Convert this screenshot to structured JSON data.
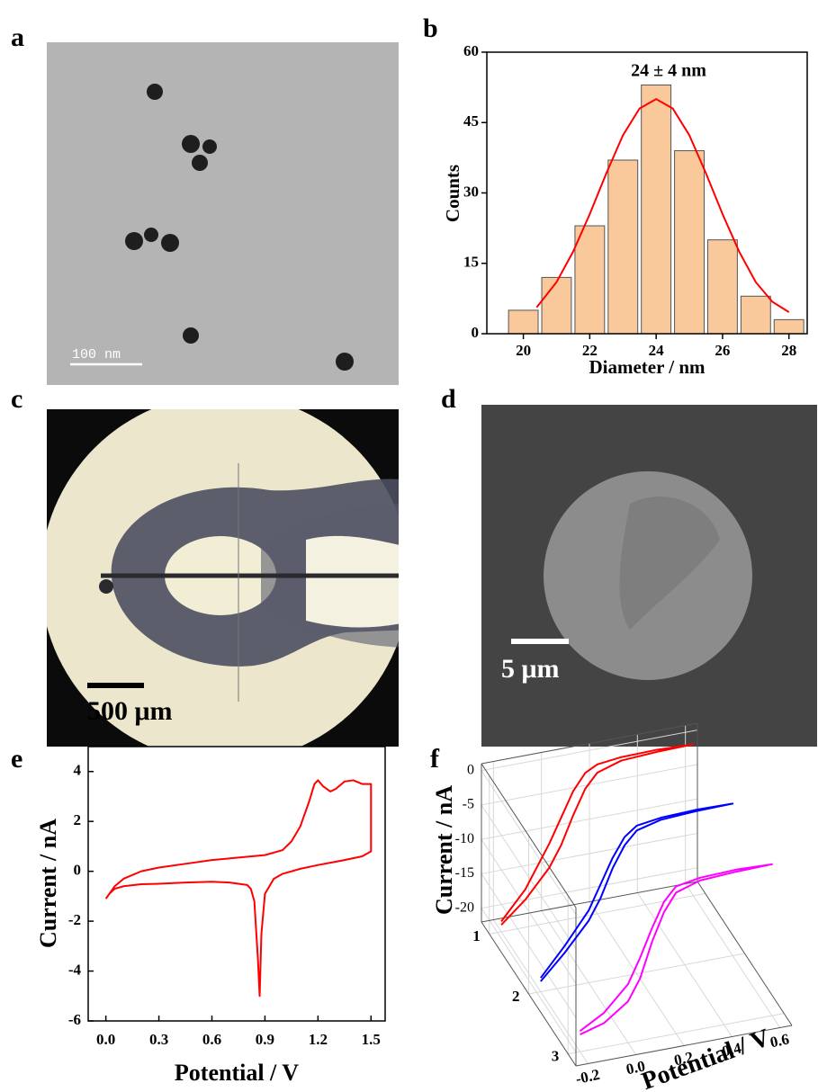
{
  "panels": [
    {
      "label": "a",
      "scale_bar": "100 nm"
    },
    {
      "label": "b"
    },
    {
      "label": "c",
      "scale_bar": "500 μm"
    },
    {
      "label": "d",
      "scale_bar": "5 μm"
    },
    {
      "label": "e"
    },
    {
      "label": "f"
    }
  ],
  "chart_data": [
    {
      "type": "histogram",
      "xlabel": "Diameter / nm",
      "ylabel": "Counts",
      "annotation": "24 ± 4 nm",
      "bins": [
        19.5,
        20.5,
        21.5,
        22.5,
        23.5,
        24.5,
        25.5,
        26.5,
        27.5,
        28.5
      ],
      "counts": [
        5,
        12,
        23,
        37,
        53,
        39,
        20,
        8,
        3
      ],
      "color": "#f9c89b",
      "fit": {
        "color": "#ff0000",
        "x": [
          20.4,
          21,
          21.5,
          22,
          22.5,
          23,
          23.5,
          24,
          24.5,
          25,
          25.5,
          26,
          26.5,
          27,
          27.5,
          28
        ],
        "values": [
          5.6,
          11,
          17.5,
          25.5,
          34.2,
          42.3,
          48,
          50,
          48,
          42.3,
          34.2,
          25.5,
          17.5,
          11,
          6.8,
          4.6
        ]
      },
      "xlim": [
        18.9,
        28.55
      ],
      "ylim": [
        0,
        60
      ],
      "xticks": [
        20,
        22,
        24,
        26,
        28
      ],
      "yticks": [
        0,
        15,
        30,
        45,
        60
      ]
    },
    {
      "type": "line",
      "xlabel": "Potential / V",
      "ylabel": "Current / nA",
      "series": [
        {
          "color": "#ff0000",
          "x": [
            0,
            0.05,
            0.1,
            0.2,
            0.3,
            0.45,
            0.6,
            0.75,
            0.9,
            1.0,
            1.05,
            1.1,
            1.15,
            1.18,
            1.2,
            1.23,
            1.27,
            1.3,
            1.35,
            1.4,
            1.45,
            1.5,
            1.5,
            1.45,
            1.35,
            1.2,
            1.1,
            1.0,
            0.95,
            0.9,
            0.88,
            0.87,
            0.86,
            0.84,
            0.82,
            0.8,
            0.7,
            0.6,
            0.45,
            0.3,
            0.2,
            0.1,
            0.05,
            0.02,
            0
          ],
          "values": [
            -1.1,
            -0.6,
            -0.3,
            0,
            0.15,
            0.3,
            0.45,
            0.55,
            0.65,
            0.85,
            1.2,
            1.8,
            2.8,
            3.5,
            3.65,
            3.4,
            3.2,
            3.3,
            3.6,
            3.65,
            3.5,
            3.5,
            0.8,
            0.6,
            0.45,
            0.25,
            0.1,
            -0.1,
            -0.3,
            -0.9,
            -2.5,
            -5.0,
            -3.5,
            -1.2,
            -0.7,
            -0.55,
            -0.45,
            -0.42,
            -0.45,
            -0.5,
            -0.52,
            -0.6,
            -0.7,
            -0.9,
            -1.1
          ]
        }
      ],
      "xlim": [
        -0.1,
        1.58
      ],
      "ylim": [
        -6,
        5
      ],
      "xticks": [
        {
          "value": 0,
          "label": "0.0"
        },
        0.3,
        0.6,
        0.9,
        1.2,
        1.5
      ],
      "yticks": [
        -6,
        -4,
        -2,
        0,
        2,
        4
      ]
    },
    {
      "type": "line3d",
      "xlabel": "Potential / V",
      "ylabel": "Current / nA",
      "series": [
        {
          "color": "#ff0000",
          "z": 1,
          "x": [
            -0.2,
            -0.1,
            0,
            0.05,
            0.1,
            0.15,
            0.2,
            0.3,
            0.45,
            0.6,
            0.45,
            0.3,
            0.2,
            0.15,
            0.1,
            0.05,
            0,
            -0.1,
            -0.2
          ],
          "values": [
            -21,
            -18,
            -14,
            -11,
            -7,
            -3.5,
            -1.5,
            -0.4,
            -0.1,
            0,
            0.2,
            0.1,
            -0.3,
            -1.2,
            -3.5,
            -7,
            -10.5,
            -16.5,
            -20.5
          ]
        },
        {
          "color": "#0000ff",
          "z": 2,
          "x": [
            -0.2,
            -0.1,
            0,
            0.05,
            0.1,
            0.15,
            0.2,
            0.3,
            0.45,
            0.6,
            0.45,
            0.3,
            0.2,
            0.15,
            0.1,
            0.05,
            0,
            -0.1,
            -0.2
          ],
          "values": [
            -20.5,
            -17,
            -13,
            -10,
            -6,
            -3,
            -1.2,
            -0.3,
            0,
            0.1,
            0.2,
            0,
            -0.5,
            -1.8,
            -4.5,
            -8,
            -11.5,
            -16,
            -20
          ]
        },
        {
          "color": "#ff00ff",
          "z": 3,
          "x": [
            -0.2,
            -0.1,
            0,
            0.05,
            0.1,
            0.15,
            0.2,
            0.3,
            0.45,
            0.6,
            0.45,
            0.3,
            0.2,
            0.15,
            0.1,
            0.05,
            0,
            -0.1,
            -0.2
          ],
          "values": [
            -19.5,
            -18.5,
            -16,
            -13,
            -8,
            -4,
            -1.5,
            -0.4,
            -0.1,
            0,
            0.2,
            0,
            -0.6,
            -2.5,
            -6,
            -10,
            -13.5,
            -17,
            -19
          ]
        }
      ],
      "xlim": [
        -0.25,
        0.65
      ],
      "ylim": [
        -22,
        1
      ],
      "zlim": [
        0.8,
        3.2
      ],
      "xticks": [
        -0.2,
        {
          "value": 0,
          "label": "0.0"
        },
        0.2,
        0.4,
        0.6
      ],
      "yticks": [
        0,
        -5,
        -10,
        -15,
        -20
      ],
      "zticks": [
        1,
        2,
        3
      ]
    }
  ]
}
